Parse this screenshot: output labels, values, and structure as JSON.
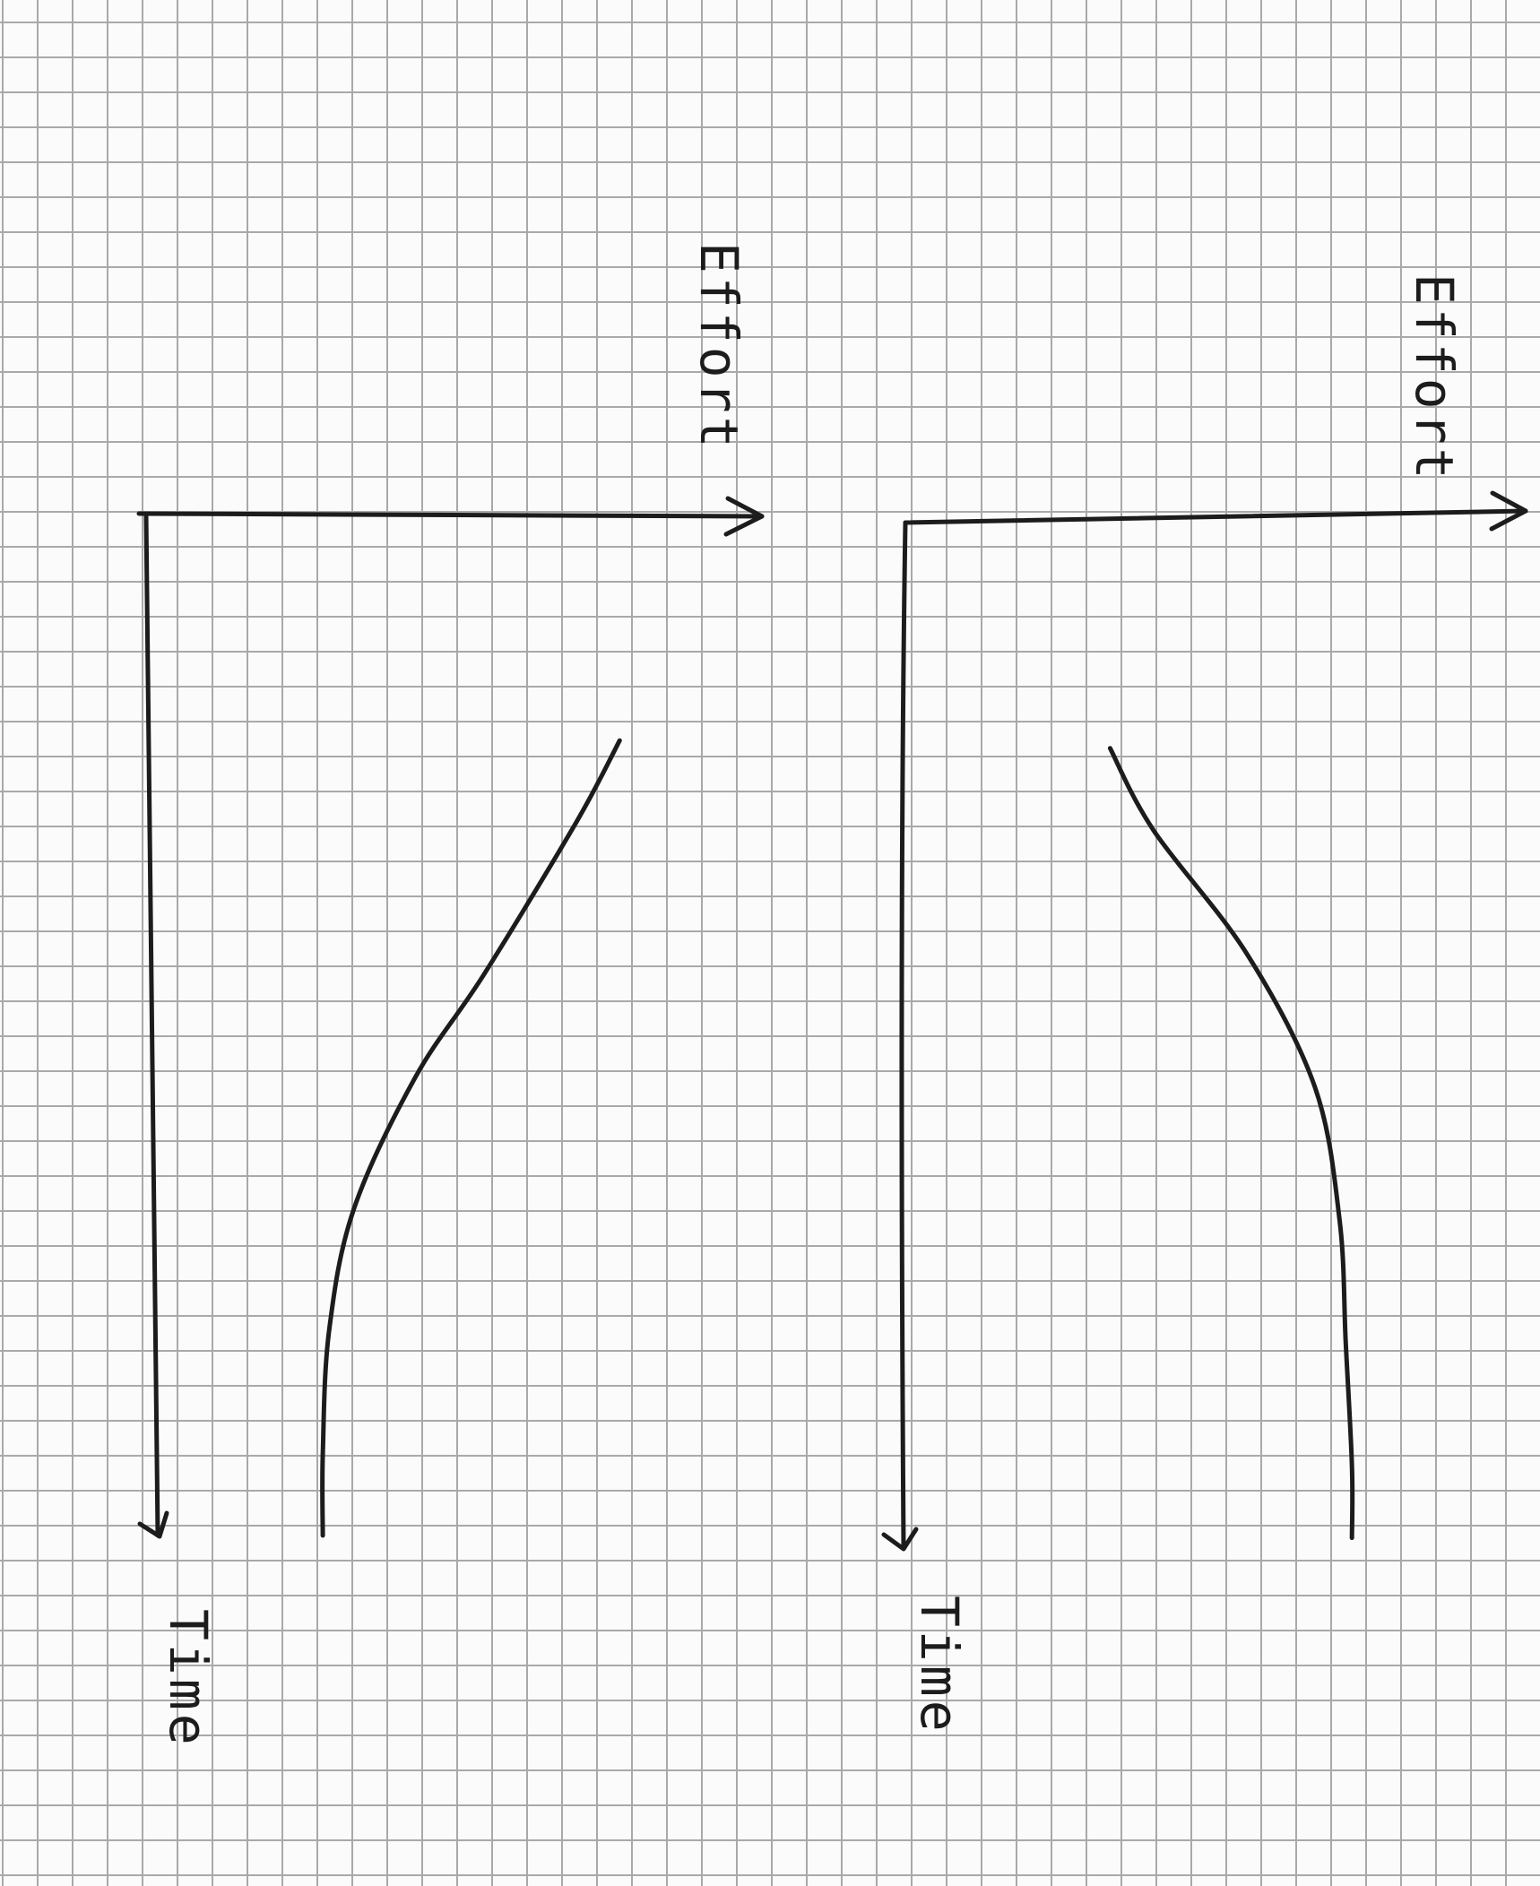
{
  "chart_data": [
    {
      "type": "line",
      "title": "",
      "xlabel": "Time",
      "ylabel": "Effort",
      "grid": true,
      "series": [
        {
          "x": [
            0.22,
            0.3,
            0.45,
            0.55,
            0.68,
            0.8,
            0.92,
            1.0
          ],
          "values": [
            0.77,
            0.7,
            0.55,
            0.44,
            0.34,
            0.3,
            0.29,
            0.29
          ]
        }
      ]
    },
    {
      "type": "line",
      "title": "",
      "xlabel": "Time",
      "ylabel": "Effort",
      "grid": true,
      "series": [
        {
          "x": [
            0.22,
            0.3,
            0.42,
            0.55,
            0.68,
            0.8,
            0.92,
            0.99
          ],
          "values": [
            0.33,
            0.4,
            0.55,
            0.66,
            0.7,
            0.71,
            0.72,
            0.72
          ]
        }
      ]
    }
  ],
  "axis_text": {
    "left_effort": "Effort",
    "left_time": "Time",
    "right_effort": "Effort",
    "right_time": "Time"
  },
  "colors": {
    "ink": "#1c1c1c",
    "grid": "#a9a9a9",
    "paper": "#fbfbfb"
  }
}
